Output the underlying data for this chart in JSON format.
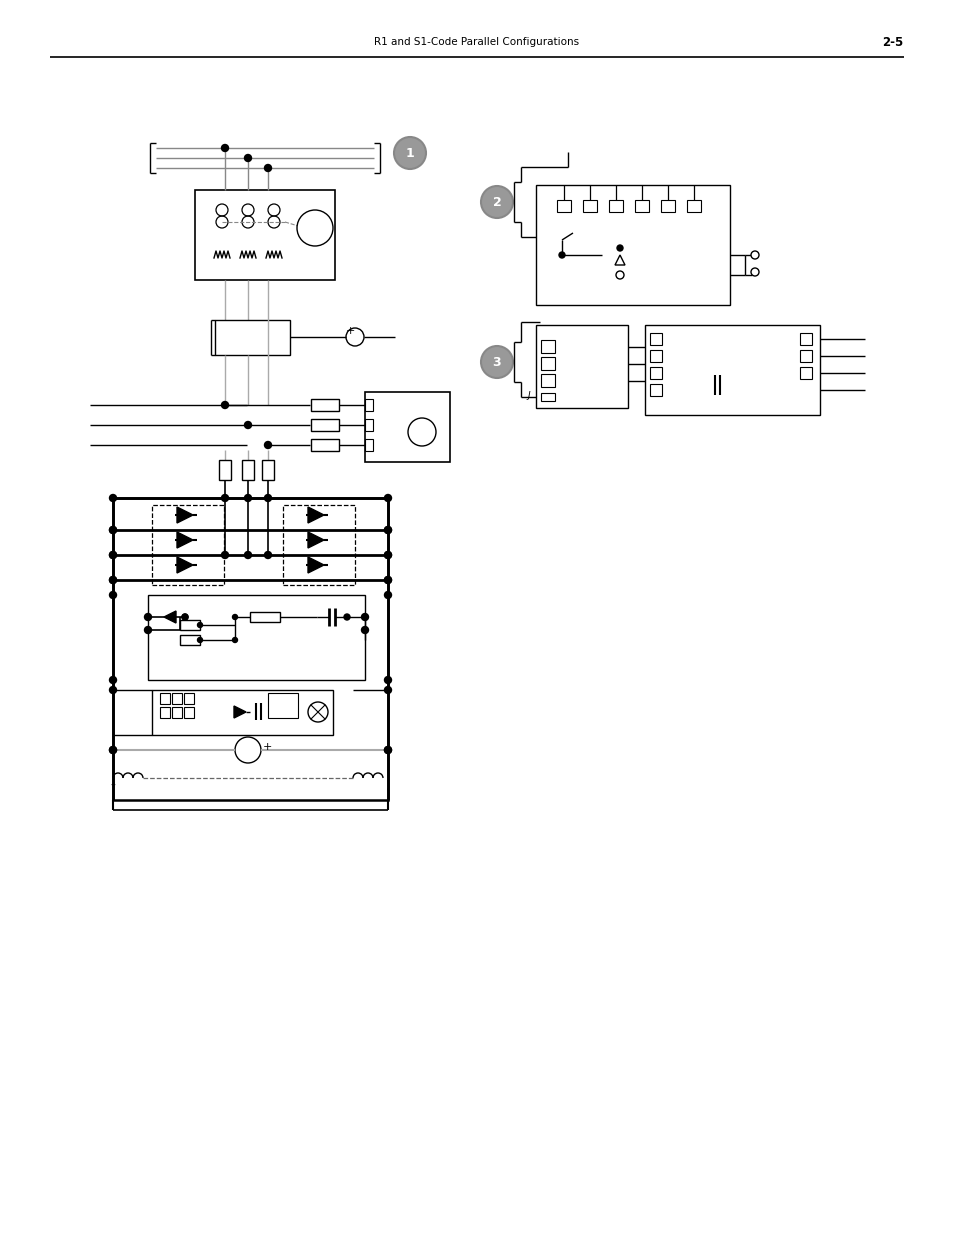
{
  "title_text": "R1 and S1-Code Parallel Configurations",
  "page_num": "2-5",
  "bg_color": "#ffffff",
  "line_color": "#000000",
  "gray_color": "#808080",
  "dashed_color": "#555555",
  "light_gray": "#cccccc"
}
